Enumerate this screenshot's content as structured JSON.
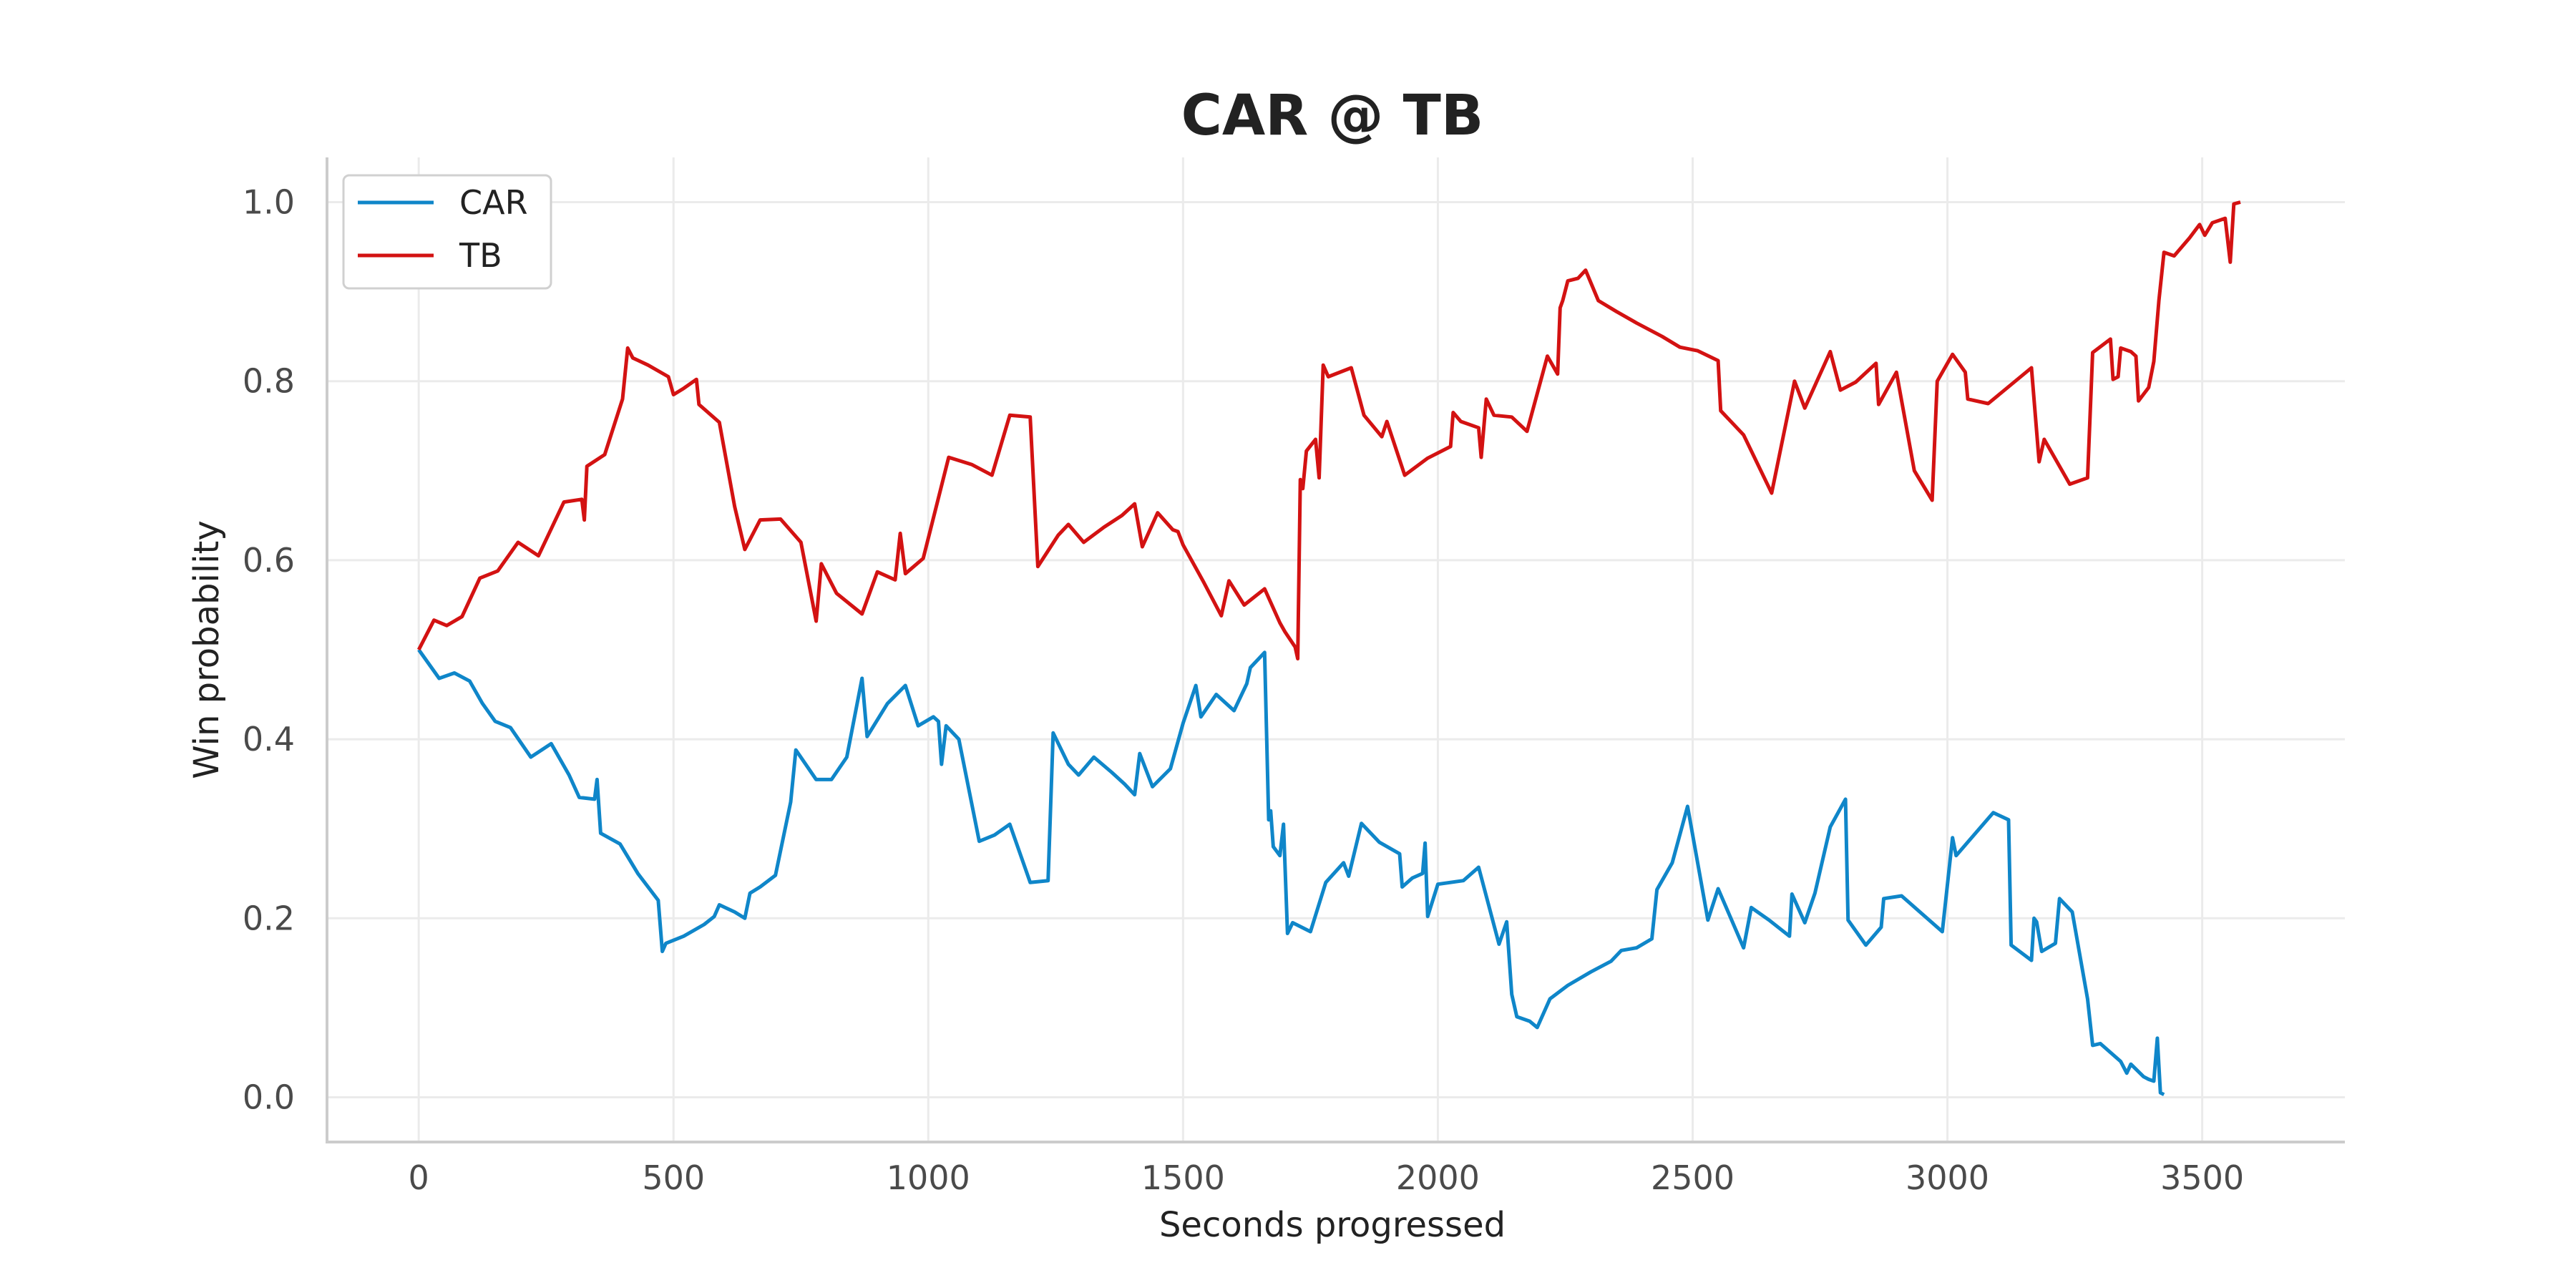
{
  "chart_data": {
    "type": "line",
    "title": "CAR @ TB",
    "xlabel": "Seconds progressed",
    "ylabel": "Win probability",
    "xlim": [
      -180,
      3780
    ],
    "ylim": [
      -0.05,
      1.05
    ],
    "xticks": [
      0,
      500,
      1000,
      1500,
      2000,
      2500,
      3000,
      3500
    ],
    "xtick_labels": [
      "0",
      "500",
      "1000",
      "1500",
      "2000",
      "2500",
      "3000",
      "3500"
    ],
    "yticks": [
      0.0,
      0.2,
      0.4,
      0.6,
      0.8,
      1.0
    ],
    "ytick_labels": [
      "0.0",
      "0.2",
      "0.4",
      "0.6",
      "0.8",
      "1.0"
    ],
    "grid": true,
    "legend": "upper-left",
    "colors": {
      "CAR": "#0f86c9",
      "TB": "#d31212"
    },
    "series": [
      {
        "name": "CAR",
        "points": [
          [
            0,
            0.5
          ],
          [
            40,
            0.468
          ],
          [
            70,
            0.474
          ],
          [
            100,
            0.465
          ],
          [
            125,
            0.44
          ],
          [
            150,
            0.42
          ],
          [
            180,
            0.413
          ],
          [
            220,
            0.38
          ],
          [
            260,
            0.395
          ],
          [
            295,
            0.36
          ],
          [
            315,
            0.335
          ],
          [
            345,
            0.333
          ],
          [
            350,
            0.355
          ],
          [
            357,
            0.295
          ],
          [
            395,
            0.283
          ],
          [
            430,
            0.25
          ],
          [
            470,
            0.22
          ],
          [
            478,
            0.163
          ],
          [
            485,
            0.172
          ],
          [
            520,
            0.18
          ],
          [
            560,
            0.193
          ],
          [
            580,
            0.202
          ],
          [
            590,
            0.215
          ],
          [
            620,
            0.207
          ],
          [
            640,
            0.2
          ],
          [
            650,
            0.228
          ],
          [
            670,
            0.235
          ],
          [
            700,
            0.248
          ],
          [
            730,
            0.33
          ],
          [
            740,
            0.388
          ],
          [
            780,
            0.355
          ],
          [
            810,
            0.355
          ],
          [
            840,
            0.38
          ],
          [
            870,
            0.468
          ],
          [
            880,
            0.403
          ],
          [
            920,
            0.44
          ],
          [
            955,
            0.46
          ],
          [
            980,
            0.415
          ],
          [
            1010,
            0.425
          ],
          [
            1020,
            0.42
          ],
          [
            1026,
            0.372
          ],
          [
            1035,
            0.415
          ],
          [
            1060,
            0.4
          ],
          [
            1100,
            0.286
          ],
          [
            1130,
            0.293
          ],
          [
            1160,
            0.305
          ],
          [
            1200,
            0.24
          ],
          [
            1235,
            0.242
          ],
          [
            1245,
            0.407
          ],
          [
            1275,
            0.372
          ],
          [
            1295,
            0.36
          ],
          [
            1325,
            0.38
          ],
          [
            1360,
            0.363
          ],
          [
            1385,
            0.35
          ],
          [
            1405,
            0.338
          ],
          [
            1415,
            0.384
          ],
          [
            1440,
            0.347
          ],
          [
            1475,
            0.367
          ],
          [
            1500,
            0.418
          ],
          [
            1525,
            0.46
          ],
          [
            1535,
            0.425
          ],
          [
            1565,
            0.45
          ],
          [
            1600,
            0.432
          ],
          [
            1625,
            0.462
          ],
          [
            1632,
            0.48
          ],
          [
            1660,
            0.497
          ],
          [
            1668,
            0.31
          ],
          [
            1672,
            0.32
          ],
          [
            1677,
            0.28
          ],
          [
            1690,
            0.27
          ],
          [
            1697,
            0.305
          ],
          [
            1705,
            0.183
          ],
          [
            1715,
            0.195
          ],
          [
            1750,
            0.185
          ],
          [
            1780,
            0.24
          ],
          [
            1815,
            0.262
          ],
          [
            1825,
            0.247
          ],
          [
            1850,
            0.306
          ],
          [
            1885,
            0.285
          ],
          [
            1925,
            0.272
          ],
          [
            1930,
            0.235
          ],
          [
            1950,
            0.245
          ],
          [
            1970,
            0.25
          ],
          [
            1975,
            0.284
          ],
          [
            1980,
            0.202
          ],
          [
            2000,
            0.238
          ],
          [
            2050,
            0.242
          ],
          [
            2080,
            0.257
          ],
          [
            2120,
            0.171
          ],
          [
            2135,
            0.196
          ],
          [
            2145,
            0.115
          ],
          [
            2155,
            0.09
          ],
          [
            2180,
            0.085
          ],
          [
            2195,
            0.078
          ],
          [
            2220,
            0.11
          ],
          [
            2255,
            0.125
          ],
          [
            2300,
            0.14
          ],
          [
            2340,
            0.152
          ],
          [
            2360,
            0.164
          ],
          [
            2390,
            0.167
          ],
          [
            2420,
            0.177
          ],
          [
            2430,
            0.232
          ],
          [
            2460,
            0.262
          ],
          [
            2490,
            0.325
          ],
          [
            2530,
            0.198
          ],
          [
            2550,
            0.233
          ],
          [
            2600,
            0.167
          ],
          [
            2615,
            0.212
          ],
          [
            2650,
            0.198
          ],
          [
            2690,
            0.18
          ],
          [
            2695,
            0.227
          ],
          [
            2720,
            0.195
          ],
          [
            2740,
            0.228
          ],
          [
            2770,
            0.302
          ],
          [
            2800,
            0.333
          ],
          [
            2805,
            0.198
          ],
          [
            2840,
            0.17
          ],
          [
            2870,
            0.19
          ],
          [
            2875,
            0.222
          ],
          [
            2910,
            0.225
          ],
          [
            2990,
            0.185
          ],
          [
            3010,
            0.29
          ],
          [
            3017,
            0.27
          ],
          [
            3090,
            0.318
          ],
          [
            3120,
            0.31
          ],
          [
            3125,
            0.17
          ],
          [
            3165,
            0.153
          ],
          [
            3170,
            0.2
          ],
          [
            3175,
            0.196
          ],
          [
            3185,
            0.163
          ],
          [
            3212,
            0.172
          ],
          [
            3220,
            0.222
          ],
          [
            3245,
            0.207
          ],
          [
            3275,
            0.11
          ],
          [
            3285,
            0.058
          ],
          [
            3300,
            0.06
          ],
          [
            3340,
            0.04
          ],
          [
            3352,
            0.027
          ],
          [
            3360,
            0.037
          ],
          [
            3385,
            0.023
          ],
          [
            3395,
            0.02
          ],
          [
            3405,
            0.018
          ],
          [
            3412,
            0.066
          ],
          [
            3418,
            0.005
          ],
          [
            3425,
            0.003
          ]
        ]
      },
      {
        "name": "TB",
        "points": [
          [
            0,
            0.5
          ],
          [
            30,
            0.533
          ],
          [
            55,
            0.527
          ],
          [
            85,
            0.537
          ],
          [
            120,
            0.58
          ],
          [
            155,
            0.588
          ],
          [
            195,
            0.62
          ],
          [
            235,
            0.605
          ],
          [
            285,
            0.665
          ],
          [
            320,
            0.668
          ],
          [
            325,
            0.645
          ],
          [
            330,
            0.705
          ],
          [
            365,
            0.718
          ],
          [
            400,
            0.78
          ],
          [
            410,
            0.837
          ],
          [
            420,
            0.826
          ],
          [
            450,
            0.818
          ],
          [
            490,
            0.805
          ],
          [
            500,
            0.785
          ],
          [
            520,
            0.792
          ],
          [
            545,
            0.802
          ],
          [
            550,
            0.774
          ],
          [
            590,
            0.754
          ],
          [
            620,
            0.66
          ],
          [
            640,
            0.612
          ],
          [
            670,
            0.645
          ],
          [
            710,
            0.646
          ],
          [
            750,
            0.62
          ],
          [
            780,
            0.532
          ],
          [
            790,
            0.596
          ],
          [
            820,
            0.563
          ],
          [
            870,
            0.54
          ],
          [
            900,
            0.587
          ],
          [
            935,
            0.578
          ],
          [
            945,
            0.63
          ],
          [
            955,
            0.585
          ],
          [
            990,
            0.602
          ],
          [
            1040,
            0.715
          ],
          [
            1085,
            0.707
          ],
          [
            1125,
            0.695
          ],
          [
            1160,
            0.762
          ],
          [
            1200,
            0.76
          ],
          [
            1215,
            0.593
          ],
          [
            1255,
            0.628
          ],
          [
            1275,
            0.64
          ],
          [
            1305,
            0.62
          ],
          [
            1345,
            0.637
          ],
          [
            1380,
            0.65
          ],
          [
            1405,
            0.663
          ],
          [
            1420,
            0.615
          ],
          [
            1450,
            0.653
          ],
          [
            1480,
            0.634
          ],
          [
            1490,
            0.632
          ],
          [
            1500,
            0.617
          ],
          [
            1540,
            0.576
          ],
          [
            1575,
            0.538
          ],
          [
            1590,
            0.577
          ],
          [
            1620,
            0.55
          ],
          [
            1660,
            0.568
          ],
          [
            1690,
            0.53
          ],
          [
            1700,
            0.52
          ],
          [
            1720,
            0.503
          ],
          [
            1725,
            0.49
          ],
          [
            1730,
            0.69
          ],
          [
            1735,
            0.68
          ],
          [
            1742,
            0.722
          ],
          [
            1760,
            0.735
          ],
          [
            1767,
            0.692
          ],
          [
            1775,
            0.818
          ],
          [
            1785,
            0.805
          ],
          [
            1830,
            0.815
          ],
          [
            1855,
            0.762
          ],
          [
            1890,
            0.738
          ],
          [
            1900,
            0.755
          ],
          [
            1935,
            0.695
          ],
          [
            1980,
            0.714
          ],
          [
            2025,
            0.727
          ],
          [
            2030,
            0.765
          ],
          [
            2045,
            0.755
          ],
          [
            2080,
            0.748
          ],
          [
            2085,
            0.715
          ],
          [
            2095,
            0.78
          ],
          [
            2110,
            0.762
          ],
          [
            2145,
            0.76
          ],
          [
            2175,
            0.744
          ],
          [
            2215,
            0.828
          ],
          [
            2235,
            0.808
          ],
          [
            2240,
            0.882
          ],
          [
            2245,
            0.89
          ],
          [
            2255,
            0.912
          ],
          [
            2275,
            0.915
          ],
          [
            2290,
            0.924
          ],
          [
            2315,
            0.89
          ],
          [
            2350,
            0.878
          ],
          [
            2390,
            0.865
          ],
          [
            2440,
            0.85
          ],
          [
            2475,
            0.838
          ],
          [
            2510,
            0.834
          ],
          [
            2550,
            0.823
          ],
          [
            2555,
            0.767
          ],
          [
            2600,
            0.74
          ],
          [
            2655,
            0.675
          ],
          [
            2700,
            0.8
          ],
          [
            2720,
            0.77
          ],
          [
            2770,
            0.833
          ],
          [
            2790,
            0.79
          ],
          [
            2820,
            0.799
          ],
          [
            2860,
            0.82
          ],
          [
            2865,
            0.774
          ],
          [
            2900,
            0.81
          ],
          [
            2935,
            0.7
          ],
          [
            2970,
            0.667
          ],
          [
            2980,
            0.8
          ],
          [
            3010,
            0.83
          ],
          [
            3035,
            0.81
          ],
          [
            3040,
            0.78
          ],
          [
            3080,
            0.775
          ],
          [
            3165,
            0.815
          ],
          [
            3180,
            0.71
          ],
          [
            3190,
            0.735
          ],
          [
            3240,
            0.685
          ],
          [
            3275,
            0.692
          ],
          [
            3285,
            0.832
          ],
          [
            3320,
            0.847
          ],
          [
            3325,
            0.802
          ],
          [
            3335,
            0.805
          ],
          [
            3340,
            0.837
          ],
          [
            3360,
            0.833
          ],
          [
            3370,
            0.828
          ],
          [
            3375,
            0.778
          ],
          [
            3395,
            0.793
          ],
          [
            3405,
            0.822
          ],
          [
            3415,
            0.89
          ],
          [
            3425,
            0.944
          ],
          [
            3445,
            0.94
          ],
          [
            3475,
            0.96
          ],
          [
            3495,
            0.975
          ],
          [
            3505,
            0.963
          ],
          [
            3520,
            0.977
          ],
          [
            3545,
            0.982
          ],
          [
            3555,
            0.933
          ],
          [
            3562,
            0.998
          ],
          [
            3575,
            1.0
          ]
        ]
      }
    ]
  }
}
